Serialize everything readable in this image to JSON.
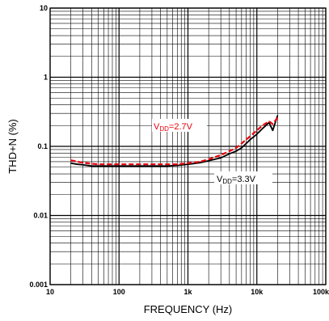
{
  "chart_data": {
    "type": "line",
    "x_scale": "log",
    "y_scale": "log",
    "xlim": [
      10,
      100000
    ],
    "ylim": [
      0.001,
      10
    ],
    "grid": true,
    "xlabel": "FREQUENCY (Hz)",
    "ylabel": "THD+N (%)",
    "x_ticks": [
      {
        "value": 10,
        "label": "10"
      },
      {
        "value": 100,
        "label": "100"
      },
      {
        "value": 1000,
        "label": "1k"
      },
      {
        "value": 10000,
        "label": "10k"
      },
      {
        "value": 100000,
        "label": "100k"
      }
    ],
    "y_ticks": [
      {
        "value": 10,
        "label": "10"
      },
      {
        "value": 1,
        "label": "1"
      },
      {
        "value": 0.1,
        "label": "0.1"
      },
      {
        "value": 0.01,
        "label": "0.01"
      },
      {
        "value": 0.001,
        "label": "0.001"
      }
    ],
    "series": [
      {
        "label_main": "V",
        "label_sub": "DD",
        "label_suffix": "=3.3V",
        "color": "#000000",
        "style": "solid",
        "x": [
          20,
          25,
          30,
          40,
          50,
          70,
          100,
          150,
          200,
          300,
          500,
          700,
          1000,
          1500,
          2000,
          3000,
          4000,
          5000,
          6000,
          7000,
          8000,
          10000,
          12000,
          15000,
          17000,
          20000
        ],
        "y": [
          0.057,
          0.055,
          0.054,
          0.052,
          0.052,
          0.052,
          0.052,
          0.052,
          0.052,
          0.052,
          0.052,
          0.053,
          0.055,
          0.058,
          0.062,
          0.068,
          0.078,
          0.085,
          0.095,
          0.11,
          0.125,
          0.15,
          0.18,
          0.22,
          0.17,
          0.28
        ]
      },
      {
        "label_main": "V",
        "label_sub": "DD",
        "label_suffix": "=2.7V",
        "color": "#e8000b",
        "style": "dashed",
        "x": [
          20,
          25,
          30,
          40,
          50,
          70,
          100,
          150,
          200,
          300,
          500,
          700,
          1000,
          1500,
          2000,
          3000,
          4000,
          5000,
          6000,
          7000,
          8000,
          10000,
          12000,
          15000,
          17000,
          20000
        ],
        "y": [
          0.063,
          0.06,
          0.058,
          0.056,
          0.055,
          0.055,
          0.055,
          0.055,
          0.055,
          0.055,
          0.055,
          0.055,
          0.057,
          0.06,
          0.065,
          0.075,
          0.085,
          0.095,
          0.11,
          0.125,
          0.14,
          0.17,
          0.2,
          0.23,
          0.21,
          0.26
        ]
      }
    ]
  }
}
